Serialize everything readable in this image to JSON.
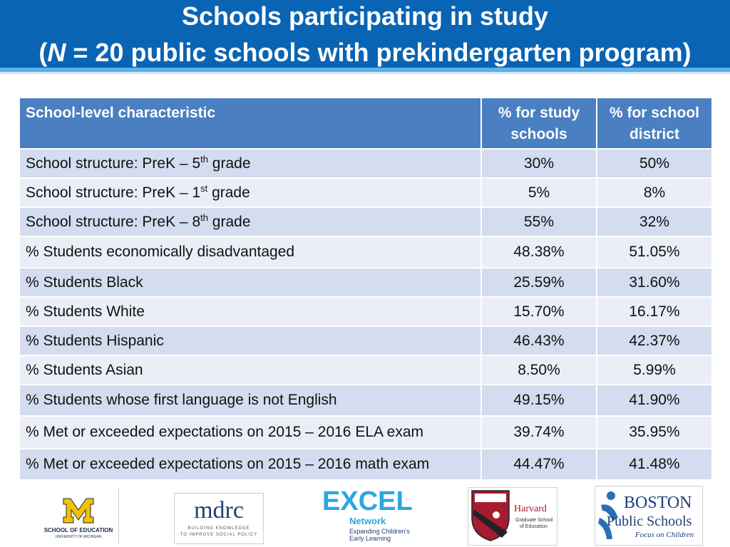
{
  "header": {
    "title_line1": "Schools participating in study",
    "title_line2_italic": "N",
    "title_line2_rest": " = 20 public schools with prekindergarten program)",
    "title_line2_open": "("
  },
  "table": {
    "columns": [
      "School-level characteristic",
      "% for study schools",
      "% for school district"
    ],
    "rows": [
      {
        "pre": "School structure: PreK – 5",
        "sup": "th",
        "post": " grade",
        "study": "30%",
        "district": "50%"
      },
      {
        "pre": "School structure: PreK – 1",
        "sup": "st",
        "post": " grade",
        "study": "5%",
        "district": "8%"
      },
      {
        "pre": "School structure: PreK – 8",
        "sup": "th",
        "post": " grade",
        "study": "55%",
        "district": "32%"
      },
      {
        "pre": "% Students economically disadvantaged",
        "sup": "",
        "post": "",
        "study": "48.38%",
        "district": "51.05%"
      },
      {
        "pre": "% Students Black",
        "sup": "",
        "post": "",
        "study": "25.59%",
        "district": "31.60%"
      },
      {
        "pre": "% Students White",
        "sup": "",
        "post": "",
        "study": "15.70%",
        "district": "16.17%"
      },
      {
        "pre": "% Students Hispanic",
        "sup": "",
        "post": "",
        "study": "46.43%",
        "district": "42.37%"
      },
      {
        "pre": "% Students Asian",
        "sup": "",
        "post": "",
        "study": "8.50%",
        "district": "5.99%"
      },
      {
        "pre": "% Students whose first language is not English",
        "sup": "",
        "post": "",
        "study": "49.15%",
        "district": "41.90%"
      },
      {
        "pre": "% Met or exceeded expectations on 2015 – 2016 ELA exam",
        "sup": "",
        "post": "",
        "study": "39.74%",
        "district": "35.95%"
      },
      {
        "pre": "% Met or exceeded expectations on 2015 – 2016 math exam",
        "sup": "",
        "post": "",
        "study": "44.47%",
        "district": "41.48%"
      }
    ]
  },
  "logos": {
    "michigan": {
      "mark": "M",
      "line1": "SCHOOL OF EDUCATION",
      "line2": "UNIVERSITY OF MICHIGAN"
    },
    "mdrc": {
      "name": "mdrc",
      "tag1": "BUILDING KNOWLEDGE",
      "tag2": "TO IMPROVE SOCIAL POLICY"
    },
    "excel": {
      "name": "EXCEL",
      "sub": "Network",
      "tag1": "Expanding Children’s",
      "tag2": "Early Learning"
    },
    "harvard": {
      "name": "Harvard",
      "tag1": "Graduate School",
      "tag2": "of Education"
    },
    "boston": {
      "name1": "BOSTON",
      "name2": "Public Schools",
      "tag": "Focus on Children"
    }
  },
  "colors": {
    "header_bg": "#0a64b4",
    "table_header": "#4a7fc1",
    "row_dark": "#d4dcef",
    "row_light": "#ebeef7"
  }
}
